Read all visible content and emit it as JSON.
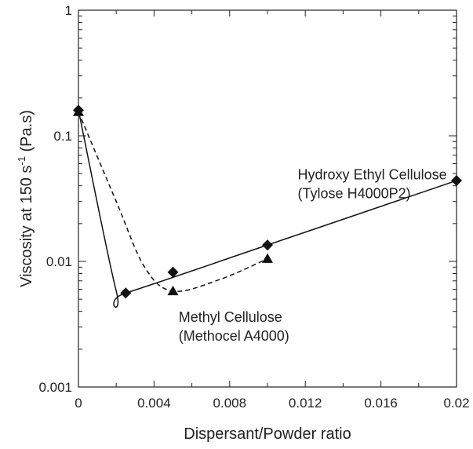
{
  "chart_data": {
    "type": "line",
    "title": "",
    "xlabel": "Dispersant/Powder ratio",
    "ylabel": {
      "prefix": "Viscosity at 150 s",
      "superscript": "-1",
      "suffix": " (Pa.s)"
    },
    "xlim": [
      0,
      0.02
    ],
    "ylim": [
      0.001,
      1
    ],
    "yscale": "log",
    "grid": false,
    "x_ticks": [
      "0",
      "0.004",
      "0.008",
      "0.012",
      "0.016",
      "0.02"
    ],
    "x_tick_values": [
      0,
      0.004,
      0.008,
      0.012,
      0.016,
      0.02
    ],
    "y_ticks": [
      "0.001",
      "0.01",
      "0.1",
      "1"
    ],
    "y_tick_values": [
      0.001,
      0.01,
      0.1,
      1
    ],
    "series": [
      {
        "marker": "diamond",
        "line_style": "solid",
        "points": [
          {
            "x": 0,
            "y": 0.16
          },
          {
            "x": 0.0025,
            "y": 0.0056
          },
          {
            "x": 0.005,
            "y": 0.0082
          },
          {
            "x": 0.01,
            "y": 0.0135
          },
          {
            "x": 0.02,
            "y": 0.044
          }
        ],
        "curve": [
          {
            "x": 0,
            "y": 0.16
          },
          {
            "x": 0.002,
            "y": 0.0058
          },
          {
            "x": 0.0025,
            "y": 0.0056
          },
          {
            "x": 0.01,
            "y": 0.0135
          },
          {
            "x": 0.02,
            "y": 0.044
          }
        ]
      },
      {
        "marker": "triangle",
        "line_style": "dashed",
        "points": [
          {
            "x": 0,
            "y": 0.155
          },
          {
            "x": 0.005,
            "y": 0.0058
          },
          {
            "x": 0.01,
            "y": 0.0105
          }
        ],
        "curve": [
          {
            "x": 0,
            "y": 0.155
          },
          {
            "x": 0.002,
            "y": 0.03
          },
          {
            "x": 0.0035,
            "y": 0.009
          },
          {
            "x": 0.005,
            "y": 0.0058
          },
          {
            "x": 0.0075,
            "y": 0.0072
          },
          {
            "x": 0.01,
            "y": 0.0105
          }
        ]
      }
    ],
    "annotations": [
      {
        "lines": [
          "Hydroxy Ethyl Cellulose",
          "(Tylose H4000P2)"
        ],
        "x": 0.0116,
        "y": 0.045
      },
      {
        "lines": [
          "Methyl Cellulose",
          "(Methocel A4000)"
        ],
        "x": 0.0053,
        "y": 0.0033
      }
    ]
  }
}
